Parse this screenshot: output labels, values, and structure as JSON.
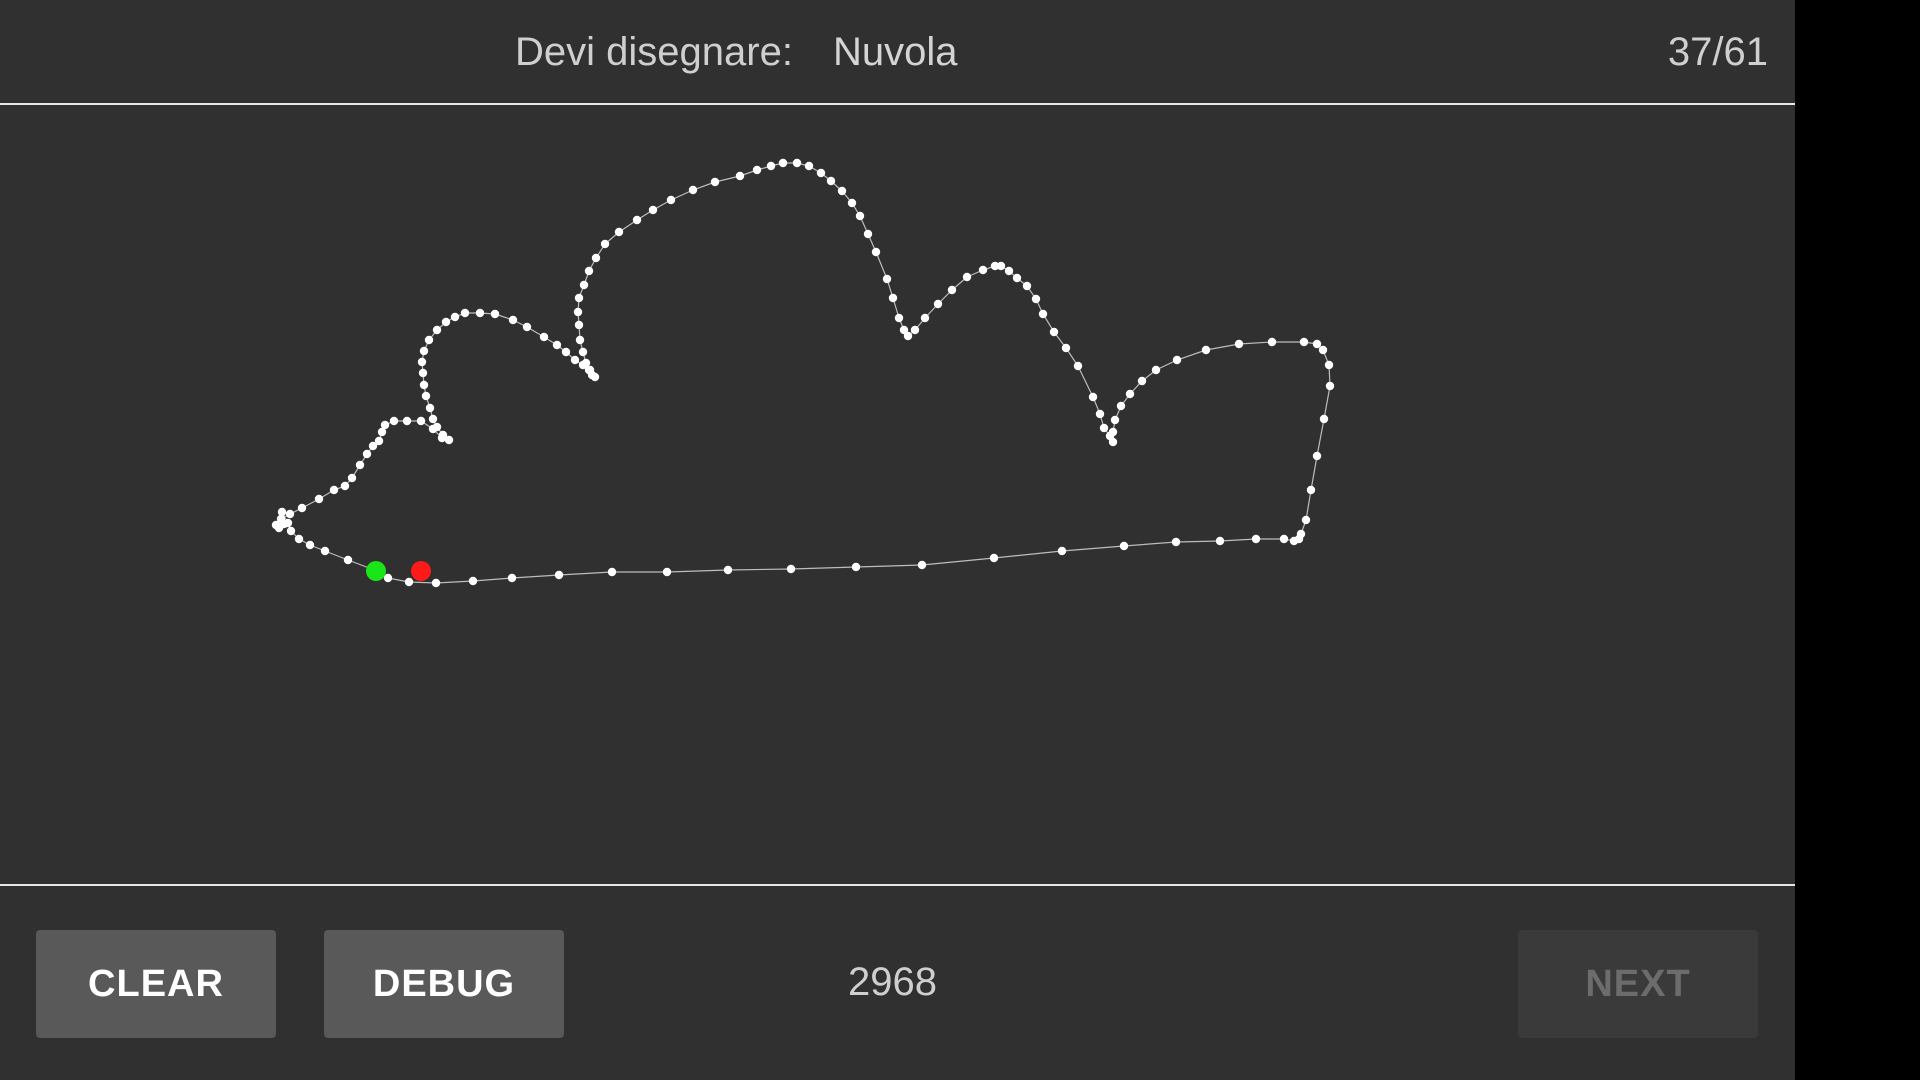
{
  "header": {
    "prompt_label": "Devi disegnare:",
    "prompt_word": "Nuvola",
    "progress": "37/61"
  },
  "canvas": {
    "stroke_color": "#ffffff",
    "start_marker_color": "#19e619",
    "end_marker_color": "#ff1a1a"
  },
  "footer": {
    "clear_label": "CLEAR",
    "debug_label": "DEBUG",
    "counter": "2968",
    "next_label": "NEXT"
  },
  "colors": {
    "background": "#303030",
    "button": "#595959",
    "button_disabled": "#3a3a3a"
  }
}
